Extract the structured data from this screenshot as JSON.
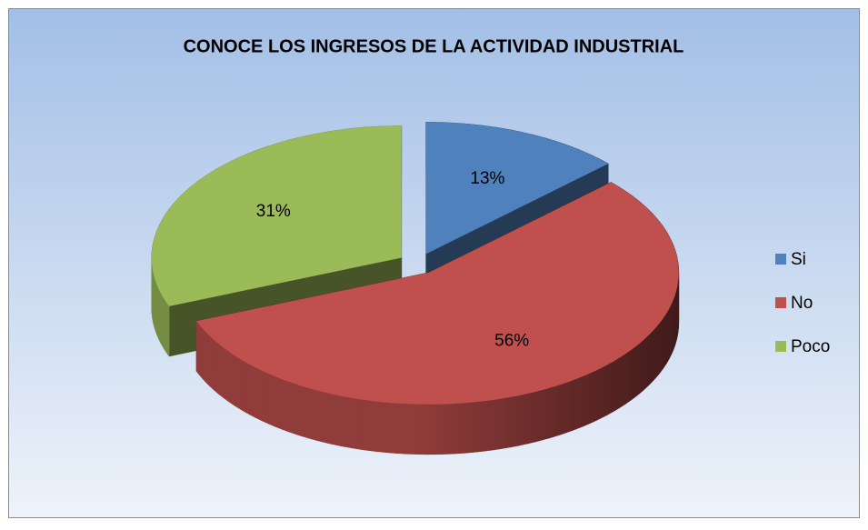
{
  "chart_data": {
    "type": "pie3d",
    "title": "CONOCE LOS INGRESOS DE LA ACTIVIDAD INDUSTRIAL",
    "categories": [
      "Si",
      "No",
      "Poco"
    ],
    "values": [
      13,
      56,
      31
    ],
    "value_labels": [
      "13%",
      "56%",
      "31%"
    ],
    "colors": [
      "#4f81bd",
      "#c0504d",
      "#9bbb59"
    ],
    "legend": "right"
  }
}
